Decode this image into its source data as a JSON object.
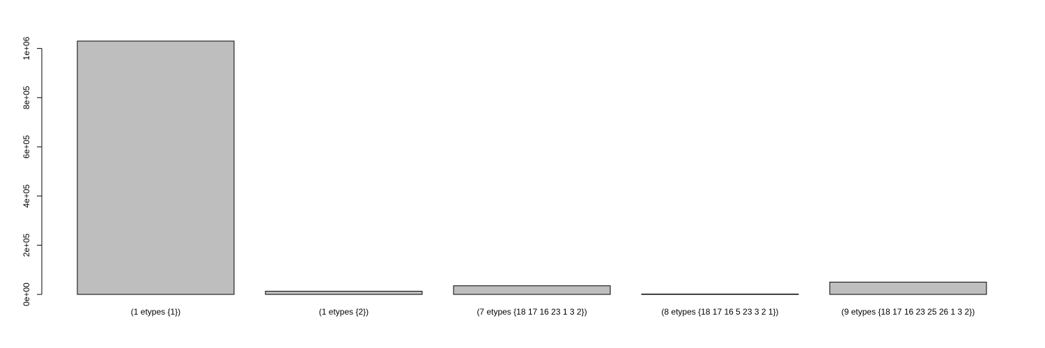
{
  "chart_data": {
    "type": "bar",
    "categories": [
      "(1 etypes {1})",
      "(1 etypes {2})",
      "(7 etypes {18 17 16 23 1 3 2})",
      "(8 etypes {18 17 16 5 23 3 2 1})",
      "(9 etypes {18 17 16 23 25 26 1 3 2})"
    ],
    "values": [
      1030000,
      13000,
      35000,
      1500,
      50000
    ],
    "yticks": [
      0,
      200000,
      400000,
      600000,
      800000,
      1000000
    ],
    "ytick_labels": [
      "0e+00",
      "2e+05",
      "4e+05",
      "6e+05",
      "8e+05",
      "1e+06"
    ],
    "ylim": [
      0,
      1030000
    ],
    "title": "",
    "xlabel": "",
    "ylabel": "",
    "grid": false,
    "bar_color": "#bebebe",
    "bar_edge_color": "#000000"
  }
}
